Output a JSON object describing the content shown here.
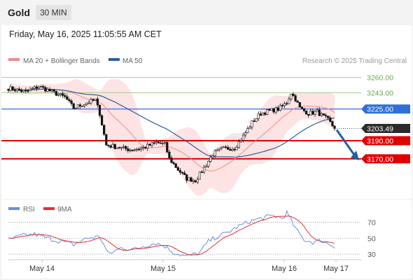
{
  "header": {
    "symbol": "Gold",
    "timeframe": "30 MIN"
  },
  "datetime": "Friday, May 16, 2025 11:05:55 AM CET",
  "legend": {
    "ma20": "MA 20 + Bollinger Bands",
    "ma50": "MA 50",
    "credit": "Research © 2025 Trading Central"
  },
  "colors": {
    "bollinger_fill": "#fde3e3",
    "ma20": "#f08a8a",
    "ma50": "#2e5e9e",
    "up_candle": "#ffffff",
    "down_candle": "#111111",
    "resistance_green": "#a8d08d",
    "level_blue": "#2f6fd6",
    "support_red": "#e00000",
    "price_tag": "#2b2b2b",
    "arrow": "#1f5ea8",
    "rsi": "#6b8fd8",
    "rsi_ma": "#e03030"
  },
  "chart_data": [
    {
      "type": "candlestick",
      "title": "Gold 30 MIN",
      "x_labels": [
        "May 14",
        "May 15",
        "May 16",
        "May 17"
      ],
      "ylim": [
        3125,
        3272
      ],
      "current_price": 3203.49,
      "levels": [
        {
          "value": 3260.0,
          "label": "3260.00",
          "style": "resistance"
        },
        {
          "value": 3243.0,
          "label": "3243.00",
          "style": "resistance"
        },
        {
          "value": 3225.0,
          "label": "3225.00",
          "style": "pivot"
        },
        {
          "value": 3190.0,
          "label": "3190.00",
          "style": "support"
        },
        {
          "value": 3170.0,
          "label": "3170.00",
          "style": "support"
        }
      ],
      "price_keyframes": [
        [
          0,
          3248
        ],
        [
          8,
          3244
        ],
        [
          14,
          3250
        ],
        [
          20,
          3244
        ],
        [
          26,
          3238
        ],
        [
          30,
          3226
        ],
        [
          36,
          3232
        ],
        [
          40,
          3235
        ],
        [
          42,
          3220
        ],
        [
          45,
          3185
        ],
        [
          50,
          3183
        ],
        [
          56,
          3180
        ],
        [
          62,
          3182
        ],
        [
          68,
          3188
        ],
        [
          72,
          3186
        ],
        [
          74,
          3170
        ],
        [
          78,
          3158
        ],
        [
          82,
          3148
        ],
        [
          86,
          3146
        ],
        [
          90,
          3160
        ],
        [
          94,
          3175
        ],
        [
          98,
          3181
        ],
        [
          104,
          3182
        ],
        [
          108,
          3195
        ],
        [
          112,
          3210
        ],
        [
          116,
          3220
        ],
        [
          120,
          3223
        ],
        [
          124,
          3225
        ],
        [
          128,
          3232
        ],
        [
          130,
          3243
        ],
        [
          132,
          3236
        ],
        [
          134,
          3226
        ],
        [
          138,
          3220
        ],
        [
          142,
          3222
        ],
        [
          144,
          3218
        ],
        [
          147,
          3213
        ],
        [
          150,
          3203.49
        ]
      ],
      "arrow_target": 3169,
      "forecast": "decline toward 3170.00"
    },
    {
      "type": "line",
      "title": "RSI",
      "series_names": [
        "RSI",
        "9MA"
      ],
      "ylim": [
        24,
        80
      ],
      "y_ticks": [
        70,
        50,
        30
      ],
      "rsi_keyframes": [
        [
          0,
          48
        ],
        [
          6,
          53
        ],
        [
          12,
          55
        ],
        [
          18,
          50
        ],
        [
          24,
          46
        ],
        [
          30,
          42
        ],
        [
          36,
          50
        ],
        [
          42,
          52
        ],
        [
          46,
          30
        ],
        [
          52,
          38
        ],
        [
          58,
          36
        ],
        [
          62,
          40
        ],
        [
          68,
          44
        ],
        [
          72,
          40
        ],
        [
          76,
          32
        ],
        [
          82,
          27
        ],
        [
          88,
          32
        ],
        [
          92,
          46
        ],
        [
          96,
          52
        ],
        [
          100,
          56
        ],
        [
          106,
          65
        ],
        [
          112,
          72
        ],
        [
          118,
          76
        ],
        [
          122,
          78
        ],
        [
          126,
          75
        ],
        [
          128,
          82
        ],
        [
          132,
          62
        ],
        [
          136,
          48
        ],
        [
          140,
          45
        ],
        [
          144,
          47
        ],
        [
          148,
          42
        ],
        [
          150,
          40
        ]
      ]
    }
  ]
}
